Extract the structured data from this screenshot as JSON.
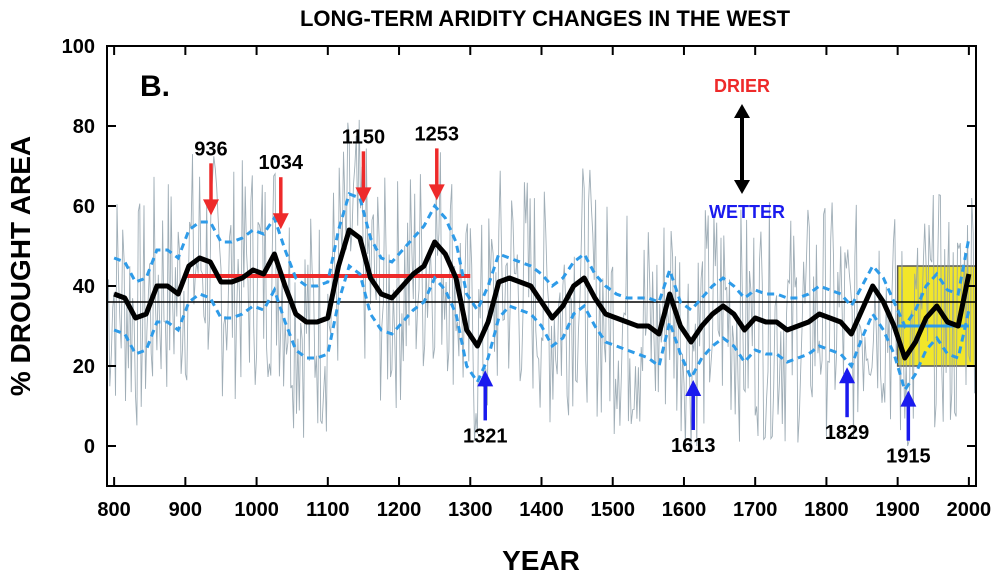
{
  "chart_data": {
    "type": "line",
    "title": "LONG-TERM ARIDITY CHANGES IN THE WEST",
    "panel_label": "B.",
    "xlabel": "YEAR",
    "ylabel": "% DROUGHT AREA",
    "xlim": [
      790,
      2010
    ],
    "ylim": [
      -10,
      100
    ],
    "x_ticks": [
      800,
      900,
      1000,
      1100,
      1200,
      1300,
      1400,
      1500,
      1600,
      1700,
      1800,
      1900,
      2000
    ],
    "y_ticks": [
      0,
      20,
      40,
      60,
      80,
      100
    ],
    "grid": false,
    "long_term_mean": 36,
    "medieval_mean": {
      "x": [
        900,
        1300
      ],
      "y": 42.5
    },
    "twentieth_century_mean": {
      "x": [
        1900,
        2000
      ],
      "y": 30
    },
    "highlight_period": {
      "x": [
        1900,
        2010
      ],
      "y": [
        20,
        45
      ],
      "color": "#f2e62a"
    },
    "colors": {
      "smoothed": "#000000",
      "confidence": "#2e9be8",
      "annual": "#8fa0aa",
      "mean_line": "#000000",
      "medieval_mean": "#ee2a2a",
      "drier_arrows": "#ee2a2a",
      "wetter_arrows": "#1a1aee"
    },
    "smoothed_series": {
      "x": [
        800,
        815,
        830,
        845,
        860,
        875,
        890,
        905,
        920,
        935,
        950,
        965,
        980,
        995,
        1010,
        1025,
        1040,
        1055,
        1070,
        1085,
        1100,
        1115,
        1130,
        1145,
        1160,
        1175,
        1190,
        1205,
        1220,
        1235,
        1250,
        1265,
        1280,
        1295,
        1310,
        1325,
        1340,
        1355,
        1370,
        1385,
        1400,
        1415,
        1430,
        1445,
        1460,
        1475,
        1490,
        1505,
        1520,
        1535,
        1550,
        1565,
        1580,
        1595,
        1610,
        1625,
        1640,
        1655,
        1670,
        1685,
        1700,
        1715,
        1730,
        1745,
        1760,
        1775,
        1790,
        1805,
        1820,
        1835,
        1850,
        1865,
        1880,
        1895,
        1910,
        1925,
        1940,
        1955,
        1970,
        1985,
        2000
      ],
      "y": [
        38,
        37,
        32,
        33,
        40,
        40,
        38,
        45,
        47,
        46,
        41,
        41,
        42,
        44,
        43,
        48,
        40,
        33,
        31,
        31,
        32,
        45,
        54,
        52,
        42,
        38,
        37,
        40,
        43,
        45,
        51,
        48,
        42,
        29,
        25,
        31,
        41,
        42,
        41,
        40,
        36,
        32,
        35,
        40,
        42,
        37,
        33,
        32,
        31,
        30,
        30,
        28,
        38,
        30,
        26,
        30,
        33,
        35,
        33,
        29,
        32,
        31,
        31,
        29,
        30,
        31,
        33,
        32,
        31,
        28,
        34,
        40,
        36,
        30,
        22,
        26,
        32,
        35,
        31,
        30,
        43
      ]
    },
    "upper_band": {
      "x": [
        800,
        815,
        830,
        845,
        860,
        875,
        890,
        905,
        920,
        935,
        950,
        965,
        980,
        995,
        1010,
        1025,
        1040,
        1055,
        1070,
        1085,
        1100,
        1115,
        1130,
        1145,
        1160,
        1175,
        1190,
        1205,
        1220,
        1235,
        1250,
        1265,
        1280,
        1295,
        1310,
        1325,
        1340,
        1355,
        1370,
        1385,
        1400,
        1415,
        1430,
        1445,
        1460,
        1475,
        1490,
        1505,
        1520,
        1535,
        1550,
        1565,
        1580,
        1595,
        1610,
        1625,
        1640,
        1655,
        1670,
        1685,
        1700,
        1715,
        1730,
        1745,
        1760,
        1775,
        1790,
        1805,
        1820,
        1835,
        1850,
        1865,
        1880,
        1895,
        1910,
        1925,
        1940,
        1955,
        1970,
        1985,
        2000
      ],
      "y": [
        47,
        46,
        41,
        42,
        49,
        49,
        47,
        54,
        56,
        56,
        51,
        51,
        52,
        54,
        53,
        57,
        49,
        42,
        40,
        40,
        41,
        54,
        63,
        62,
        52,
        47,
        46,
        49,
        52,
        55,
        60,
        57,
        51,
        38,
        34,
        40,
        48,
        47,
        46,
        45,
        43,
        40,
        42,
        46,
        48,
        43,
        40,
        38,
        37,
        37,
        37,
        36,
        44,
        36,
        34,
        37,
        40,
        42,
        40,
        37,
        39,
        38,
        38,
        37,
        37,
        38,
        40,
        39,
        38,
        35,
        40,
        45,
        42,
        36,
        30,
        34,
        40,
        43,
        39,
        38,
        52
      ]
    },
    "lower_band": {
      "x": [
        800,
        815,
        830,
        845,
        860,
        875,
        890,
        905,
        920,
        935,
        950,
        965,
        980,
        995,
        1010,
        1025,
        1040,
        1055,
        1070,
        1085,
        1100,
        1115,
        1130,
        1145,
        1160,
        1175,
        1190,
        1205,
        1220,
        1235,
        1250,
        1265,
        1280,
        1295,
        1310,
        1325,
        1340,
        1355,
        1370,
        1385,
        1400,
        1415,
        1430,
        1445,
        1460,
        1475,
        1490,
        1505,
        1520,
        1535,
        1550,
        1565,
        1580,
        1595,
        1610,
        1625,
        1640,
        1655,
        1670,
        1685,
        1700,
        1715,
        1730,
        1745,
        1760,
        1775,
        1790,
        1805,
        1820,
        1835,
        1850,
        1865,
        1880,
        1895,
        1910,
        1925,
        1940,
        1955,
        1970,
        1985,
        2000
      ],
      "y": [
        29,
        28,
        23,
        24,
        31,
        31,
        29,
        36,
        38,
        37,
        32,
        32,
        33,
        35,
        34,
        39,
        31,
        24,
        22,
        22,
        23,
        36,
        45,
        43,
        33,
        29,
        28,
        31,
        34,
        36,
        42,
        39,
        33,
        20,
        16,
        22,
        32,
        35,
        34,
        33,
        30,
        25,
        27,
        33,
        35,
        30,
        26,
        25,
        24,
        23,
        22,
        20,
        31,
        23,
        17,
        22,
        25,
        27,
        25,
        21,
        24,
        23,
        23,
        21,
        22,
        23,
        25,
        24,
        23,
        20,
        27,
        33,
        29,
        23,
        14,
        18,
        24,
        27,
        23,
        22,
        34
      ]
    },
    "drier_events": [
      {
        "year": 936,
        "label": "936"
      },
      {
        "year": 1034,
        "label": "1034"
      },
      {
        "year": 1150,
        "label": "1150"
      },
      {
        "year": 1253,
        "label": "1253"
      }
    ],
    "wetter_events": [
      {
        "year": 1321,
        "label": "1321"
      },
      {
        "year": 1613,
        "label": "1613"
      },
      {
        "year": 1829,
        "label": "1829"
      },
      {
        "year": 1915,
        "label": "1915"
      }
    ],
    "legend": {
      "drier": "DRIER",
      "wetter": "WETTER"
    }
  }
}
